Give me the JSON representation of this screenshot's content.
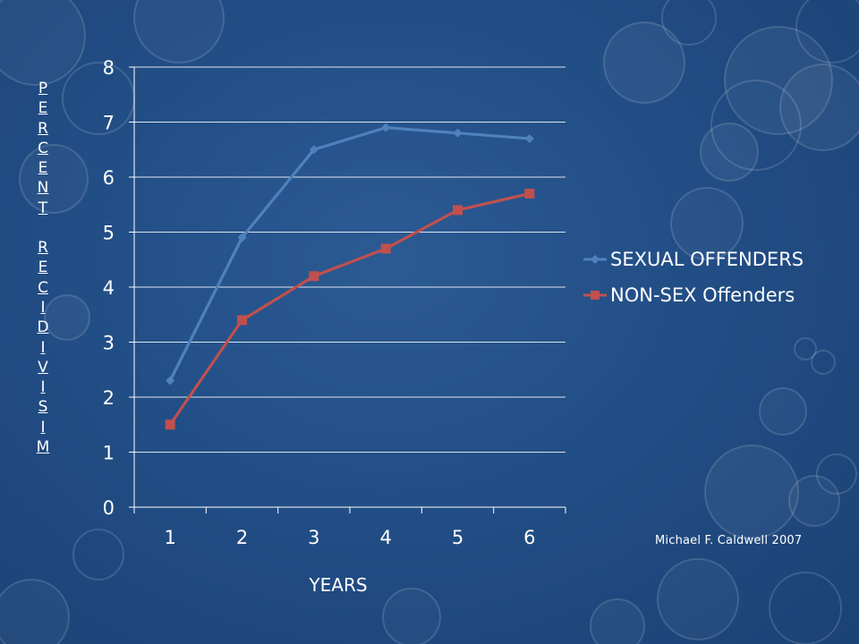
{
  "chart_data": {
    "type": "line",
    "title": "",
    "xlabel": "YEARS",
    "ylabel": "PERCENT RECIDIVISIM",
    "categories": [
      "1",
      "2",
      "3",
      "4",
      "5",
      "6"
    ],
    "ylim": [
      0,
      8
    ],
    "yticks": [
      "0",
      "1",
      "2",
      "3",
      "4",
      "5",
      "6",
      "7",
      "8"
    ],
    "grid": "horizontal",
    "legend_position": "right",
    "series": [
      {
        "name": "SEXUAL OFFENDERS",
        "color": "#4f81bd",
        "marker": "diamond",
        "values": [
          2.3,
          4.9,
          6.5,
          6.9,
          6.8,
          6.7
        ]
      },
      {
        "name": "NON-SEX Offenders",
        "color": "#c0504d",
        "marker": "square",
        "values": [
          1.5,
          3.4,
          4.2,
          4.7,
          5.4,
          5.7
        ]
      }
    ]
  },
  "ylabel_word1": [
    "P",
    "E",
    "R",
    "C",
    "E",
    "N",
    "T"
  ],
  "ylabel_word2": [
    "R",
    "E",
    "C",
    "I",
    "D",
    "I",
    "V",
    "I",
    "S",
    "I",
    "M"
  ],
  "credit": "Michael F. Caldwell  2007",
  "background": {
    "base": "#224e86",
    "accent": "#1b4274"
  }
}
